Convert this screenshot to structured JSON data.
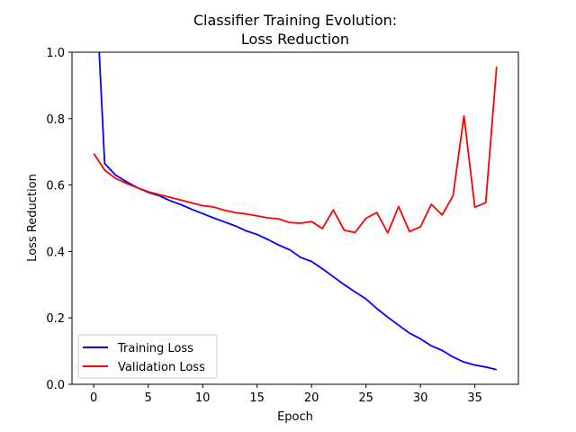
{
  "chart_data": {
    "type": "line",
    "title_lines": [
      "Classifier Training Evolution:",
      "Loss Reduction"
    ],
    "xlabel": "Epoch",
    "ylabel": "Loss Reduction",
    "xlim": [
      -2,
      39
    ],
    "ylim": [
      0,
      1.0
    ],
    "xticks": [
      0,
      5,
      10,
      15,
      20,
      25,
      30,
      35
    ],
    "yticks": [
      0.0,
      0.2,
      0.4,
      0.6,
      0.8,
      1.0
    ],
    "ytick_labels": [
      "0.0",
      "0.2",
      "0.4",
      "0.6",
      "0.8",
      "1.0"
    ],
    "grid": false,
    "legend_position": "lower-left",
    "x": [
      0,
      1,
      2,
      3,
      4,
      5,
      6,
      7,
      8,
      9,
      10,
      11,
      12,
      13,
      14,
      15,
      16,
      17,
      18,
      19,
      20,
      21,
      22,
      23,
      24,
      25,
      26,
      27,
      28,
      29,
      30,
      31,
      32,
      33,
      34,
      35,
      36,
      37
    ],
    "series": [
      {
        "name": "Training Loss",
        "color": "#0000ff",
        "x": [
          0.5,
          1,
          2,
          3,
          4,
          5,
          6,
          7,
          8,
          9,
          10,
          11,
          12,
          13,
          14,
          15,
          16,
          17,
          18,
          19,
          20,
          21,
          22,
          23,
          24,
          25,
          26,
          27,
          28,
          29,
          30,
          31,
          32,
          33,
          34,
          35,
          36,
          37
        ],
        "values": [
          1.0,
          0.665,
          0.63,
          0.61,
          0.592,
          0.578,
          0.568,
          0.553,
          0.541,
          0.527,
          0.514,
          0.501,
          0.489,
          0.477,
          0.462,
          0.451,
          0.436,
          0.419,
          0.405,
          0.382,
          0.37,
          0.348,
          0.324,
          0.3,
          0.278,
          0.257,
          0.228,
          0.202,
          0.178,
          0.154,
          0.137,
          0.116,
          0.102,
          0.082,
          0.067,
          0.058,
          0.052,
          0.044
        ]
      },
      {
        "name": "Validation Loss",
        "color": "#ff0000",
        "x": [
          0,
          1,
          2,
          3,
          4,
          5,
          6,
          7,
          8,
          9,
          10,
          11,
          12,
          13,
          14,
          15,
          16,
          17,
          18,
          19,
          20,
          21,
          22,
          23,
          24,
          25,
          26,
          27,
          28,
          29,
          30,
          31,
          32,
          33,
          34,
          35,
          36,
          37
        ],
        "values": [
          0.695,
          0.645,
          0.62,
          0.605,
          0.592,
          0.58,
          0.571,
          0.563,
          0.555,
          0.546,
          0.538,
          0.534,
          0.524,
          0.517,
          0.513,
          0.507,
          0.501,
          0.498,
          0.487,
          0.485,
          0.49,
          0.469,
          0.525,
          0.464,
          0.457,
          0.5,
          0.517,
          0.456,
          0.535,
          0.46,
          0.474,
          0.542,
          0.51,
          0.568,
          0.808,
          0.533,
          0.547,
          0.956
        ]
      }
    ]
  }
}
